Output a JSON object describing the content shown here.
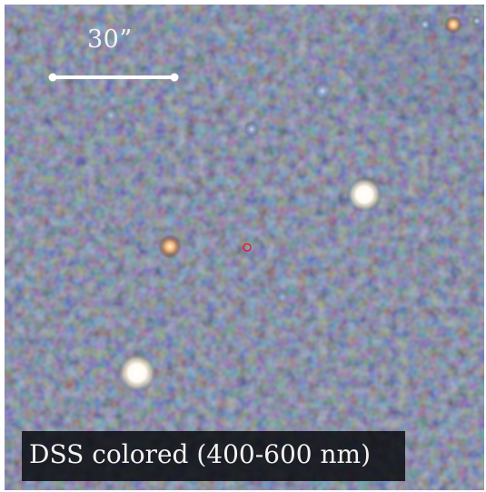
{
  "scale_bar": {
    "label": "30”"
  },
  "caption": {
    "text": "DSS colored (400-600 nm)"
  },
  "colors": {
    "sky_background": "#1c2230",
    "target_marker": "#e0202e",
    "scale_bar": "#ffffff"
  }
}
